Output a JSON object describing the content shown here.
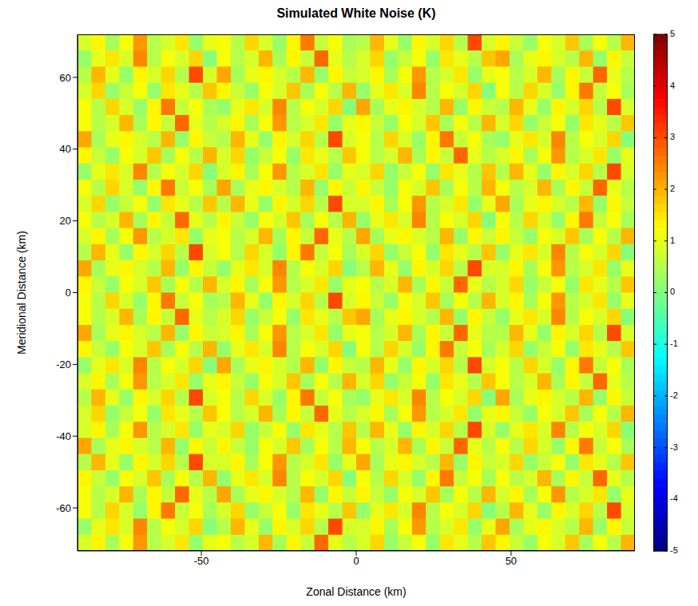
{
  "chart_data": {
    "type": "heatmap",
    "title": "Simulated White Noise (K)",
    "x_label": "Zonal Distance (km)",
    "y_label": "Meridional Distance (km)",
    "xlim": [
      -90,
      90
    ],
    "ylim": [
      -72,
      72
    ],
    "xticks": [
      -50,
      0,
      50
    ],
    "yticks": [
      -60,
      -40,
      -20,
      0,
      20,
      40,
      60
    ],
    "colorbar": {
      "range": [
        -5,
        5
      ],
      "ticks": [
        -5,
        -4,
        -3,
        -2,
        -1,
        0,
        1,
        2,
        3,
        4,
        5
      ]
    },
    "cells": [
      [
        0.8,
        1.3,
        0.4,
        1.1,
        2.2,
        0.6,
        0.9,
        1.5,
        0.3,
        1.0,
        1.2,
        0.5,
        1.7,
        0.9,
        0.2,
        1.4,
        2.6,
        0.7,
        1.1,
        0.4,
        0.6,
        1.9,
        1.0,
        0.3,
        1.3,
        0.8,
        1.6,
        0.5,
        3.1,
        0.9,
        1.4,
        0.7,
        0.2,
        1.2,
        0.9,
        1.8,
        0.4,
        1.1,
        0.6,
        2.0
      ],
      [
        0.3,
        1.0,
        1.5,
        0.8,
        2.4,
        0.5,
        1.2,
        0.9,
        1.7,
        0.1,
        1.1,
        0.6,
        0.9,
        1.9,
        0.4,
        1.3,
        0.7,
        2.8,
        1.0,
        0.5,
        0.9,
        1.6,
        0.3,
        0.7,
        1.2,
        0.2,
        1.5,
        1.0,
        0.6,
        1.8,
        2.1,
        0.4,
        1.0,
        1.4,
        0.8,
        0.6,
        1.9,
        0.3,
        1.3,
        0.7
      ],
      [
        0.6,
        1.9,
        1.0,
        0.3,
        1.3,
        0.8,
        1.6,
        0.5,
        3.1,
        0.9,
        2.1,
        0.4,
        1.0,
        1.4,
        0.8,
        0.6,
        1.9,
        0.3,
        1.3,
        0.7,
        0.8,
        1.3,
        0.4,
        1.1,
        2.2,
        0.6,
        0.9,
        1.5,
        0.3,
        1.0,
        1.1,
        0.6,
        0.9,
        1.9,
        0.4,
        1.3,
        0.7,
        2.8,
        1.0,
        0.5
      ],
      [
        0.9,
        1.6,
        0.3,
        0.7,
        1.2,
        0.2,
        1.5,
        1.0,
        0.6,
        1.8,
        1.4,
        0.7,
        0.2,
        1.2,
        0.9,
        1.8,
        0.4,
        1.1,
        0.6,
        2.0,
        0.3,
        1.0,
        1.5,
        0.8,
        2.4,
        0.5,
        1.2,
        0.9,
        1.7,
        0.1,
        1.2,
        0.5,
        1.7,
        0.9,
        0.2,
        1.4,
        2.6,
        0.7,
        1.1,
        0.4
      ],
      [
        1.2,
        0.5,
        1.7,
        0.9,
        0.2,
        1.4,
        2.6,
        0.7,
        1.1,
        0.4,
        0.3,
        1.0,
        1.5,
        0.8,
        2.4,
        0.5,
        1.2,
        0.9,
        1.7,
        0.1,
        2.1,
        0.4,
        1.0,
        1.4,
        0.8,
        0.6,
        1.9,
        0.3,
        1.3,
        0.7,
        0.6,
        1.9,
        1.0,
        0.3,
        1.3,
        0.8,
        1.6,
        0.5,
        3.1,
        0.9
      ],
      [
        1.1,
        0.6,
        0.9,
        1.9,
        0.4,
        1.3,
        0.7,
        2.8,
        1.0,
        0.5,
        0.8,
        1.3,
        0.4,
        1.1,
        2.2,
        0.6,
        0.9,
        1.5,
        0.3,
        1.0,
        1.4,
        0.7,
        0.2,
        1.2,
        0.9,
        1.8,
        0.4,
        1.1,
        0.6,
        2.0,
        0.9,
        1.6,
        0.3,
        0.7,
        1.2,
        0.2,
        1.5,
        1.0,
        0.6,
        1.8
      ],
      [
        2.1,
        0.4,
        1.0,
        1.4,
        0.8,
        0.6,
        1.9,
        0.3,
        1.3,
        0.7,
        0.6,
        1.9,
        1.0,
        0.3,
        1.3,
        0.8,
        1.6,
        0.5,
        3.1,
        0.9,
        1.2,
        0.5,
        1.7,
        0.9,
        0.2,
        1.4,
        2.6,
        0.7,
        1.1,
        0.4,
        0.3,
        1.0,
        1.5,
        0.8,
        2.4,
        0.5,
        1.2,
        0.9,
        1.7,
        0.1
      ],
      [
        1.4,
        0.7,
        0.2,
        1.2,
        0.9,
        1.8,
        0.4,
        1.1,
        0.6,
        2.0,
        0.9,
        1.6,
        0.3,
        0.7,
        1.2,
        0.2,
        1.5,
        1.0,
        0.6,
        1.8,
        1.1,
        0.6,
        0.9,
        1.9,
        0.4,
        1.3,
        0.7,
        2.8,
        1.0,
        0.5,
        0.8,
        1.3,
        0.4,
        1.1,
        2.2,
        0.6,
        0.9,
        1.5,
        0.3,
        1.0
      ],
      [
        0.3,
        1.0,
        1.5,
        0.8,
        2.4,
        0.5,
        1.2,
        0.9,
        1.7,
        0.1,
        0.8,
        1.3,
        0.4,
        1.1,
        2.2,
        0.6,
        0.9,
        1.5,
        0.3,
        1.0,
        0.9,
        1.6,
        0.3,
        0.7,
        1.2,
        0.2,
        1.5,
        1.0,
        0.6,
        1.8,
        0.6,
        1.9,
        1.0,
        0.3,
        1.3,
        0.8,
        1.6,
        0.5,
        3.1,
        0.9
      ],
      [
        1.2,
        0.5,
        1.7,
        0.9,
        0.2,
        1.4,
        2.6,
        0.7,
        1.1,
        0.4,
        2.1,
        0.4,
        1.0,
        1.4,
        0.8,
        0.6,
        1.9,
        0.3,
        1.3,
        0.7,
        1.4,
        0.7,
        0.2,
        1.2,
        0.9,
        1.8,
        0.4,
        1.1,
        0.6,
        2.0,
        1.1,
        0.6,
        0.9,
        1.9,
        0.4,
        1.3,
        0.7,
        2.8,
        1.0,
        0.5
      ],
      [
        0.9,
        1.6,
        0.3,
        0.7,
        1.2,
        0.2,
        1.5,
        1.0,
        0.6,
        1.8,
        0.6,
        1.9,
        1.0,
        0.3,
        1.3,
        0.8,
        1.6,
        0.5,
        3.1,
        0.9,
        0.8,
        1.3,
        0.4,
        1.1,
        2.2,
        0.6,
        0.9,
        1.5,
        0.3,
        1.0,
        2.1,
        0.4,
        1.0,
        1.4,
        0.8,
        0.6,
        1.9,
        0.3,
        1.3,
        0.7
      ],
      [
        1.1,
        0.6,
        0.9,
        1.9,
        0.4,
        1.3,
        0.7,
        2.8,
        1.0,
        0.5,
        1.4,
        0.7,
        0.2,
        1.2,
        0.9,
        1.8,
        0.4,
        1.1,
        0.6,
        2.0,
        0.3,
        1.0,
        1.5,
        0.8,
        2.4,
        0.5,
        1.2,
        0.9,
        1.7,
        0.1,
        1.2,
        0.5,
        1.7,
        0.9,
        0.2,
        1.4,
        2.6,
        0.7,
        1.1,
        0.4
      ],
      [
        0.8,
        1.3,
        0.4,
        1.1,
        2.2,
        0.6,
        0.9,
        1.5,
        0.3,
        1.0,
        1.1,
        0.6,
        0.9,
        1.9,
        0.4,
        1.3,
        0.7,
        2.8,
        1.0,
        0.5,
        2.1,
        0.4,
        1.0,
        1.4,
        0.8,
        0.6,
        1.9,
        0.3,
        1.3,
        0.7,
        1.4,
        0.7,
        0.2,
        1.2,
        0.9,
        1.8,
        0.4,
        1.1,
        0.6,
        2.0
      ],
      [
        0.6,
        1.9,
        1.0,
        0.3,
        1.3,
        0.8,
        1.6,
        0.5,
        3.1,
        0.9,
        1.2,
        0.5,
        1.7,
        0.9,
        0.2,
        1.4,
        2.6,
        0.7,
        1.1,
        0.4,
        0.9,
        1.6,
        0.3,
        0.7,
        1.2,
        0.2,
        1.5,
        1.0,
        0.6,
        1.8,
        0.3,
        1.0,
        1.5,
        0.8,
        2.4,
        0.5,
        1.2,
        0.9,
        1.7,
        0.1
      ],
      [
        2.1,
        0.4,
        1.0,
        1.4,
        0.8,
        0.6,
        1.9,
        0.3,
        1.3,
        0.7,
        0.3,
        1.0,
        1.5,
        0.8,
        2.4,
        0.5,
        1.2,
        0.9,
        1.7,
        0.1,
        0.6,
        1.9,
        1.0,
        0.3,
        1.3,
        0.8,
        1.6,
        0.5,
        3.1,
        0.9,
        0.8,
        1.3,
        0.4,
        1.1,
        2.2,
        0.6,
        0.9,
        1.5,
        0.3,
        1.0
      ],
      [
        1.4,
        0.7,
        0.2,
        1.2,
        0.9,
        1.8,
        0.4,
        1.1,
        0.6,
        2.0,
        0.8,
        1.3,
        0.4,
        1.1,
        2.2,
        0.6,
        0.9,
        1.5,
        0.3,
        1.0,
        1.1,
        0.6,
        0.9,
        1.9,
        0.4,
        1.3,
        0.7,
        2.8,
        1.0,
        0.5,
        0.9,
        1.6,
        0.3,
        0.7,
        1.2,
        0.2,
        1.5,
        1.0,
        0.6,
        1.8
      ],
      [
        1.2,
        0.5,
        1.7,
        0.9,
        0.2,
        1.4,
        2.6,
        0.7,
        1.1,
        0.4,
        0.6,
        1.9,
        1.0,
        0.3,
        1.3,
        0.8,
        1.6,
        0.5,
        3.1,
        0.9,
        1.4,
        0.7,
        0.2,
        1.2,
        0.9,
        1.8,
        0.4,
        1.1,
        0.6,
        2.0,
        0.8,
        1.3,
        0.4,
        1.1,
        2.2,
        0.6,
        0.9,
        1.5,
        0.3,
        1.0
      ],
      [
        1.1,
        0.6,
        0.9,
        1.9,
        0.4,
        1.3,
        0.7,
        2.8,
        1.0,
        0.5,
        0.9,
        1.6,
        0.3,
        0.7,
        1.2,
        0.2,
        1.5,
        1.0,
        0.6,
        1.8,
        2.1,
        0.4,
        1.0,
        1.4,
        0.8,
        0.6,
        1.9,
        0.3,
        1.3,
        0.7,
        0.3,
        1.0,
        1.5,
        0.8,
        2.4,
        0.5,
        1.2,
        0.9,
        1.7,
        0.1
      ],
      [
        2.1,
        0.4,
        1.0,
        1.4,
        0.8,
        0.6,
        1.9,
        0.3,
        1.3,
        0.7,
        0.8,
        1.3,
        0.4,
        1.1,
        2.2,
        0.6,
        0.9,
        1.5,
        0.3,
        1.0,
        1.1,
        0.6,
        0.9,
        1.9,
        0.4,
        1.3,
        0.7,
        2.8,
        1.0,
        0.5,
        0.6,
        1.9,
        1.0,
        0.3,
        1.3,
        0.8,
        1.6,
        0.5,
        3.1,
        0.9
      ],
      [
        1.4,
        0.7,
        0.2,
        1.2,
        0.9,
        1.8,
        0.4,
        1.1,
        0.6,
        2.0,
        0.3,
        1.0,
        1.5,
        0.8,
        2.4,
        0.5,
        1.2,
        0.9,
        1.7,
        0.1,
        1.2,
        0.5,
        1.7,
        0.9,
        0.2,
        1.4,
        2.6,
        0.7,
        1.1,
        0.4,
        0.9,
        1.6,
        0.3,
        0.7,
        1.2,
        0.2,
        1.5,
        1.0,
        0.6,
        1.8
      ],
      [
        0.3,
        1.0,
        1.5,
        0.8,
        2.4,
        0.5,
        1.2,
        0.9,
        1.7,
        0.1,
        2.1,
        0.4,
        1.0,
        1.4,
        0.8,
        0.6,
        1.9,
        0.3,
        1.3,
        0.7,
        0.6,
        1.9,
        1.0,
        0.3,
        1.3,
        0.8,
        1.6,
        0.5,
        3.1,
        0.9,
        1.2,
        0.5,
        1.7,
        0.9,
        0.2,
        1.4,
        2.6,
        0.7,
        1.1,
        0.4
      ],
      [
        0.8,
        1.3,
        0.4,
        1.1,
        2.2,
        0.6,
        0.9,
        1.5,
        0.3,
        1.0,
        1.4,
        0.7,
        0.2,
        1.2,
        0.9,
        1.8,
        0.4,
        1.1,
        0.6,
        2.0,
        0.9,
        1.6,
        0.3,
        0.7,
        1.2,
        0.2,
        1.5,
        1.0,
        0.6,
        1.8,
        1.1,
        0.6,
        0.9,
        1.9,
        0.4,
        1.3,
        0.7,
        2.8,
        1.0,
        0.5
      ],
      [
        0.6,
        1.9,
        1.0,
        0.3,
        1.3,
        0.8,
        1.6,
        0.5,
        3.1,
        0.9,
        1.2,
        0.5,
        1.7,
        0.9,
        0.2,
        1.4,
        2.6,
        0.7,
        1.1,
        0.4,
        0.3,
        1.0,
        1.5,
        0.8,
        2.4,
        0.5,
        1.2,
        0.9,
        1.7,
        0.1,
        2.1,
        0.4,
        1.0,
        1.4,
        0.8,
        0.6,
        1.9,
        0.3,
        1.3,
        0.7
      ],
      [
        0.9,
        1.6,
        0.3,
        0.7,
        1.2,
        0.2,
        1.5,
        1.0,
        0.6,
        1.8,
        1.1,
        0.6,
        0.9,
        1.9,
        0.4,
        1.3,
        0.7,
        2.8,
        1.0,
        0.5,
        0.8,
        1.3,
        0.4,
        1.1,
        2.2,
        0.6,
        0.9,
        1.5,
        0.3,
        1.0,
        1.4,
        0.7,
        0.2,
        1.2,
        0.9,
        1.8,
        0.4,
        1.1,
        0.6,
        2.0
      ],
      [
        0.8,
        1.3,
        0.4,
        1.1,
        2.2,
        0.6,
        0.9,
        1.5,
        0.3,
        1.0,
        0.9,
        1.6,
        0.3,
        0.7,
        1.2,
        0.2,
        1.5,
        1.0,
        0.6,
        1.8,
        0.6,
        1.9,
        1.0,
        0.3,
        1.3,
        0.8,
        1.6,
        0.5,
        3.1,
        0.9,
        0.3,
        1.0,
        1.5,
        0.8,
        2.4,
        0.5,
        1.2,
        0.9,
        1.7,
        0.1
      ],
      [
        2.1,
        0.4,
        1.0,
        1.4,
        0.8,
        0.6,
        1.9,
        0.3,
        1.3,
        0.7,
        1.4,
        0.7,
        0.2,
        1.2,
        0.9,
        1.8,
        0.4,
        1.1,
        0.6,
        2.0,
        1.1,
        0.6,
        0.9,
        1.9,
        0.4,
        1.3,
        0.7,
        2.8,
        1.0,
        0.5,
        1.2,
        0.5,
        1.7,
        0.9,
        0.2,
        1.4,
        2.6,
        0.7,
        1.1,
        0.4
      ],
      [
        0.6,
        1.9,
        1.0,
        0.3,
        1.3,
        0.8,
        1.6,
        0.5,
        3.1,
        0.9,
        0.8,
        1.3,
        0.4,
        1.1,
        2.2,
        0.6,
        0.9,
        1.5,
        0.3,
        1.0,
        2.1,
        0.4,
        1.0,
        1.4,
        0.8,
        0.6,
        1.9,
        0.3,
        1.3,
        0.7,
        0.9,
        1.6,
        0.3,
        0.7,
        1.2,
        0.2,
        1.5,
        1.0,
        0.6,
        1.8
      ],
      [
        1.4,
        0.7,
        0.2,
        1.2,
        0.9,
        1.8,
        0.4,
        1.1,
        0.6,
        2.0,
        0.3,
        1.0,
        1.5,
        0.8,
        2.4,
        0.5,
        1.2,
        0.9,
        1.7,
        0.1,
        1.2,
        0.5,
        1.7,
        0.9,
        0.2,
        1.4,
        2.6,
        0.7,
        1.1,
        0.4,
        1.1,
        0.6,
        0.9,
        1.9,
        0.4,
        1.3,
        0.7,
        2.8,
        1.0,
        0.5
      ],
      [
        1.1,
        0.6,
        0.9,
        1.9,
        0.4,
        1.3,
        0.7,
        2.8,
        1.0,
        0.5,
        2.1,
        0.4,
        1.0,
        1.4,
        0.8,
        0.6,
        1.9,
        0.3,
        1.3,
        0.7,
        1.4,
        0.7,
        0.2,
        1.2,
        0.9,
        1.8,
        0.4,
        1.1,
        0.6,
        2.0,
        0.8,
        1.3,
        0.4,
        1.1,
        2.2,
        0.6,
        0.9,
        1.5,
        0.3,
        1.0
      ],
      [
        1.2,
        0.5,
        1.7,
        0.9,
        0.2,
        1.4,
        2.6,
        0.7,
        1.1,
        0.4,
        0.9,
        1.6,
        0.3,
        0.7,
        1.2,
        0.2,
        1.5,
        1.0,
        0.6,
        1.8,
        0.3,
        1.0,
        1.5,
        0.8,
        2.4,
        0.5,
        1.2,
        0.9,
        1.7,
        0.1,
        0.6,
        1.9,
        1.0,
        0.3,
        1.3,
        0.8,
        1.6,
        0.5,
        3.1,
        0.9
      ],
      [
        0.3,
        1.0,
        1.5,
        0.8,
        2.4,
        0.5,
        1.2,
        0.9,
        1.7,
        0.1,
        0.6,
        1.9,
        1.0,
        0.3,
        1.3,
        0.8,
        1.6,
        0.5,
        3.1,
        0.9,
        0.8,
        1.3,
        0.4,
        1.1,
        2.2,
        0.6,
        0.9,
        1.5,
        0.3,
        1.0,
        2.1,
        0.4,
        1.0,
        1.4,
        0.8,
        0.6,
        1.9,
        0.3,
        1.3,
        0.7
      ],
      [
        0.8,
        1.3,
        0.4,
        1.1,
        2.2,
        0.6,
        0.9,
        1.5,
        0.3,
        1.0,
        1.1,
        0.6,
        0.9,
        1.9,
        0.4,
        1.3,
        0.7,
        2.8,
        1.0,
        0.5,
        0.9,
        1.6,
        0.3,
        0.7,
        1.2,
        0.2,
        1.5,
        1.0,
        0.6,
        1.8,
        1.4,
        0.7,
        0.2,
        1.2,
        0.9,
        1.8,
        0.4,
        1.1,
        0.6,
        2.0
      ]
    ]
  }
}
